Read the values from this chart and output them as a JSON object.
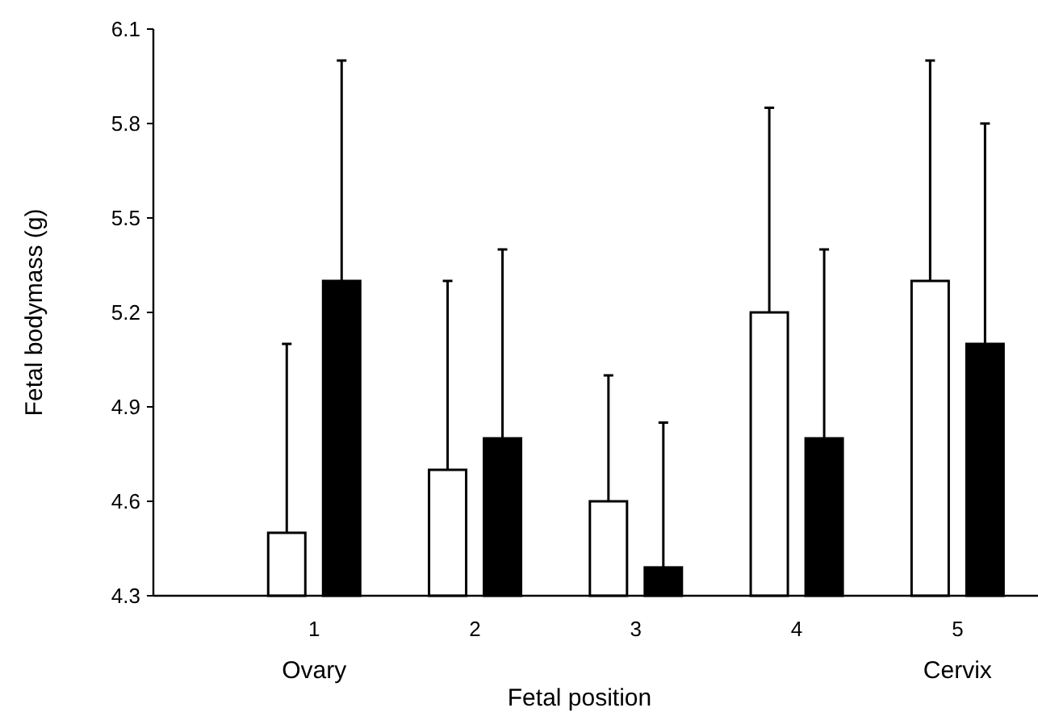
{
  "chart_data": {
    "type": "bar",
    "xlabel": "Fetal position",
    "ylabel": "Fetal bodymass (g)",
    "categories": [
      "1",
      "2",
      "3",
      "4",
      "5"
    ],
    "series": [
      {
        "color": "#ffffff",
        "values": [
          4.5,
          4.7,
          4.6,
          5.2,
          5.3
        ],
        "errors": [
          [
            4.5,
            5.1
          ],
          [
            4.7,
            5.3
          ],
          [
            4.6,
            5.0
          ],
          [
            5.2,
            5.85
          ],
          [
            5.3,
            6.0
          ]
        ]
      },
      {
        "color": "#000000",
        "values": [
          5.3,
          4.8,
          4.39,
          4.8,
          5.1
        ],
        "errors": [
          [
            5.3,
            6.0
          ],
          [
            4.8,
            5.4
          ],
          [
            4.39,
            4.85
          ],
          [
            4.8,
            5.4
          ],
          [
            5.1,
            5.8
          ]
        ]
      }
    ],
    "ylim": [
      4.3,
      6.1
    ],
    "yticks": [
      4.3,
      4.6,
      4.9,
      5.2,
      5.5,
      5.8,
      6.1
    ],
    "annotations": [
      "Ovary",
      "Cervix"
    ]
  }
}
